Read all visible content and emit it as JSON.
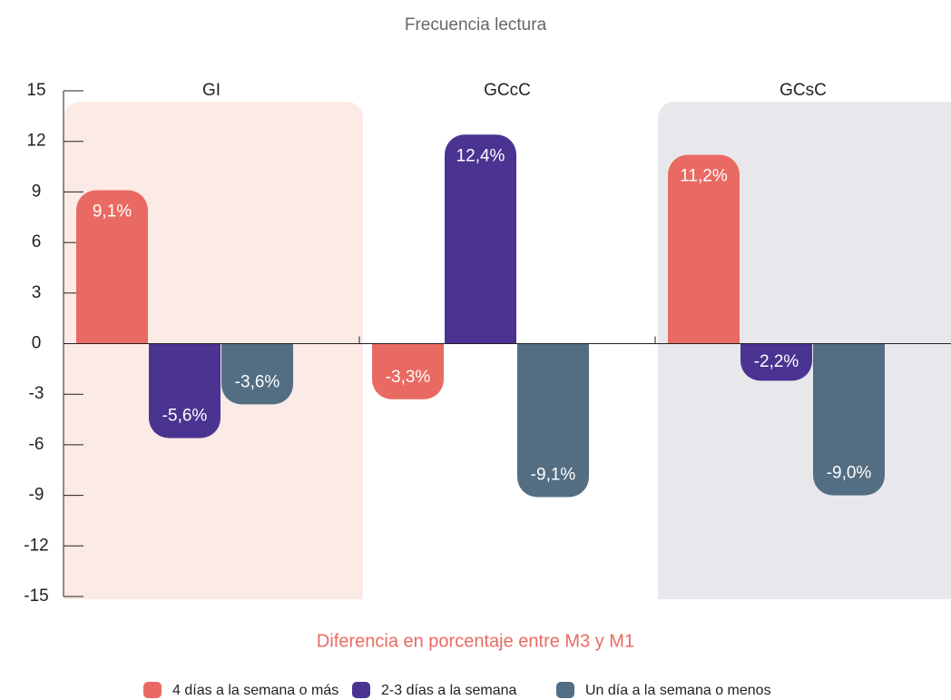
{
  "chart_data": {
    "type": "bar",
    "title": "Frecuencia lectura",
    "x_label": "Diferencia en porcentaje entre M3 y M1",
    "categories": [
      "GI",
      "GCcC",
      "GCsC"
    ],
    "series": [
      {
        "name": "4 días a la semana o más",
        "color": "#e96a62",
        "values": [
          9.1,
          -3.3,
          11.2
        ],
        "value_labels": [
          "9,1%",
          "-3,3%",
          "11,2%"
        ]
      },
      {
        "name": "2-3 días a la semana",
        "color": "#4b3391",
        "values": [
          -5.6,
          12.4,
          -2.2
        ],
        "value_labels": [
          "-5,6%",
          "12,4%",
          "-2,2%"
        ]
      },
      {
        "name": "Un día a la semana o menos",
        "color": "#536e83",
        "values": [
          -3.6,
          -9.1,
          -9.0
        ],
        "value_labels": [
          "-3,6%",
          "-9,1%",
          "-9,0%"
        ]
      }
    ],
    "ylim": [
      -15,
      15
    ],
    "yticks": [
      -15,
      -12,
      -9,
      -6,
      -3,
      0,
      3,
      6,
      9,
      12,
      15
    ],
    "legend": "bottom"
  }
}
